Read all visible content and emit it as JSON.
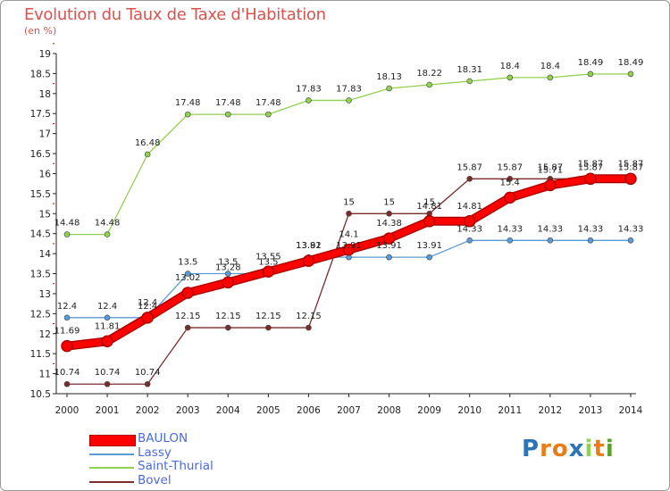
{
  "title": "Evolution du Taux de Taxe d'Habitation",
  "unit": "(en %)",
  "brand": "Proxiti",
  "chart_data": {
    "type": "line",
    "title": "Evolution du Taux de Taxe d'Habitation",
    "ylabel": "(en %)",
    "xlabel": "",
    "ylim": [
      10.5,
      19
    ],
    "y_ticks": [
      10.5,
      11,
      11.5,
      12,
      12.5,
      13,
      13.5,
      14,
      14.5,
      15,
      15.5,
      16,
      16.5,
      17,
      17.5,
      18,
      18.5,
      19
    ],
    "x": [
      "2000",
      "2001",
      "2002",
      "2003",
      "2004",
      "2005",
      "2006",
      "2007",
      "2008",
      "2009",
      "2010",
      "2011",
      "2012",
      "2013",
      "2014"
    ],
    "grid": false,
    "legend_position": "bottom-left",
    "series": [
      {
        "name": "BAULON",
        "color": "#ff0000",
        "values": [
          11.69,
          11.81,
          12.4,
          13.02,
          13.28,
          13.55,
          13.82,
          14.1,
          14.38,
          14.81,
          14.81,
          15.4,
          15.71,
          15.87,
          15.87
        ]
      },
      {
        "name": "Lassy",
        "color": "#5b9bd5",
        "values": [
          12.4,
          12.4,
          12.4,
          13.5,
          13.5,
          13.5,
          13.91,
          13.91,
          13.91,
          13.91,
          14.33,
          14.33,
          14.33,
          14.33,
          14.33
        ]
      },
      {
        "name": "Saint-Thurial",
        "color": "#92d050",
        "values": [
          14.48,
          14.48,
          16.48,
          17.48,
          17.48,
          17.48,
          17.83,
          17.83,
          18.13,
          18.22,
          18.31,
          18.4,
          18.4,
          18.49,
          18.49
        ]
      },
      {
        "name": "Bovel",
        "color": "#7b2c2c",
        "values": [
          10.74,
          10.74,
          10.74,
          12.15,
          12.15,
          12.15,
          12.15,
          15,
          15,
          15,
          15.87,
          15.87,
          15.87,
          15.87,
          15.87
        ]
      }
    ]
  }
}
